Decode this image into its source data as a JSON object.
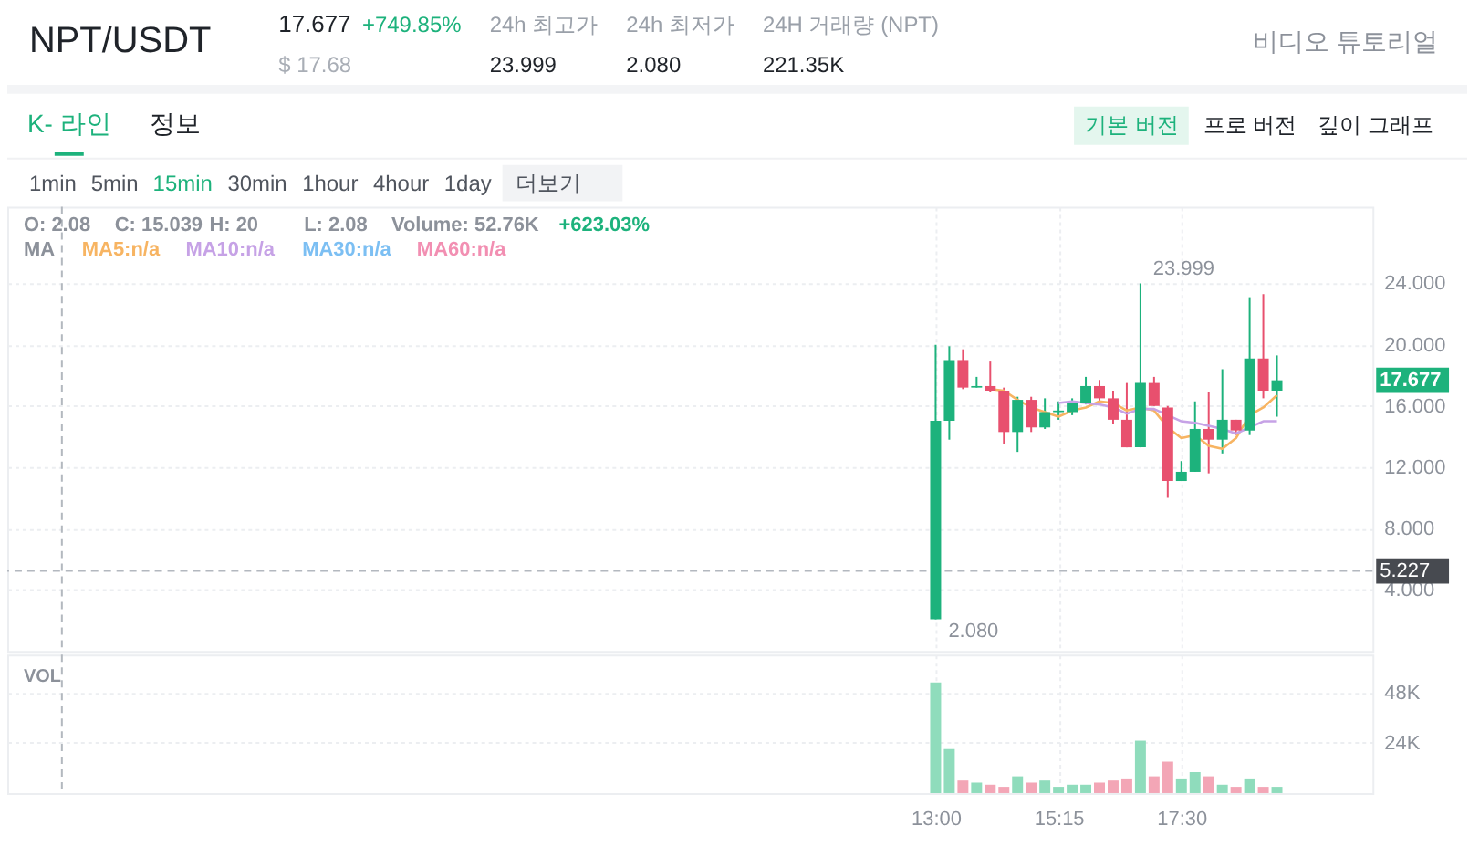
{
  "chart_data": [
    {
      "type": "other",
      "title": "NPT/USDT",
      "annotations": [
        "17.677",
        "+749.85%",
        "$ 17.68",
        "24h 최고가",
        "23.999",
        "24h 최저가",
        "2.080",
        "24H 거래량 (NPT)",
        "221.35K",
        "비디오 튜토리얼",
        "K- 라인",
        "정보",
        "기본 버전",
        "프로 버전",
        "깊이 그래프",
        "1min",
        "5min",
        "15min",
        "30min",
        "1hour",
        "4hour",
        "1day",
        "더보기"
      ]
    },
    {
      "type": "candlestick",
      "x": [
        13,
        13.25,
        13.5,
        13.75,
        14,
        14.25,
        14.5,
        14.75,
        15,
        15.25,
        15.5,
        15.75,
        16,
        16.25,
        16.5,
        16.75,
        17,
        17.25,
        17.5,
        17.75,
        18,
        18.25,
        18.5,
        18.75,
        19,
        19.25
      ],
      "ohlc": [
        [
          2.08,
          20,
          2.08,
          15.039
        ],
        [
          15.04,
          19.9,
          13.8,
          19.0
        ],
        [
          19.0,
          19.7,
          17.1,
          17.2
        ],
        [
          17.2,
          17.9,
          17.2,
          17.3
        ],
        [
          17.3,
          18.9,
          16.9,
          17.0
        ],
        [
          17.0,
          17.2,
          13.5,
          14.3
        ],
        [
          14.3,
          16.6,
          13.0,
          16.4
        ],
        [
          16.4,
          16.6,
          14.3,
          14.6
        ],
        [
          14.6,
          16.5,
          14.5,
          15.6
        ],
        [
          15.6,
          16.3,
          15.1,
          15.7
        ],
        [
          15.6,
          16.5,
          15.4,
          16.2
        ],
        [
          16.2,
          17.9,
          16.1,
          17.3
        ],
        [
          17.3,
          17.7,
          16.2,
          16.5
        ],
        [
          16.5,
          17.0,
          14.8,
          15.1
        ],
        [
          15.1,
          17.5,
          13.3,
          13.3
        ],
        [
          13.3,
          23.999,
          13.3,
          17.5
        ],
        [
          17.5,
          17.9,
          16.0,
          16.0
        ],
        [
          15.9,
          16.0,
          10.0,
          11.1
        ],
        [
          11.1,
          12.4,
          11.1,
          11.7
        ],
        [
          11.7,
          16.3,
          11.7,
          14.5
        ],
        [
          14.5,
          16.9,
          11.6,
          13.8
        ],
        [
          13.8,
          18.4,
          12.9,
          15.1
        ],
        [
          15.1,
          15.1,
          14.1,
          14.4
        ],
        [
          14.4,
          23.1,
          14.1,
          19.1
        ],
        [
          19.1,
          23.3,
          16.5,
          17.0
        ],
        [
          17.0,
          19.3,
          15.3,
          17.677
        ]
      ],
      "colors": [
        "#1db27c",
        "#1db27c",
        "#e8506e",
        "#1db27c",
        "#e8506e",
        "#e8506e",
        "#1db27c",
        "#e8506e",
        "#1db27c",
        "#1db27c",
        "#1db27c",
        "#1db27c",
        "#e8506e",
        "#e8506e",
        "#e8506e",
        "#1db27c",
        "#e8506e",
        "#e8506e",
        "#1db27c",
        "#1db27c",
        "#e8506e",
        "#1db27c",
        "#e8506e",
        "#1db27c",
        "#e8506e",
        "#1db27c"
      ],
      "series": [
        {
          "type": "line",
          "name": "MA5:n/a",
          "color": "#f7b462",
          "values": [
            null,
            null,
            null,
            null,
            17.1,
            17.0,
            16.4,
            15.9,
            15.6,
            15.3,
            15.7,
            15.9,
            16.3,
            16.2,
            15.7,
            15.9,
            15.7,
            14.6,
            13.9,
            14.1,
            13.4,
            13.2,
            13.9,
            15.4,
            15.9,
            16.7
          ]
        },
        {
          "type": "line",
          "name": "MA10:n/a",
          "color": "#c6a2e6",
          "values": [
            null,
            null,
            null,
            null,
            null,
            null,
            null,
            null,
            null,
            16.2,
            16.3,
            16.2,
            16.1,
            15.9,
            15.5,
            15.8,
            15.8,
            15.4,
            15.0,
            14.9,
            14.7,
            14.5,
            14.2,
            14.6,
            15.0,
            15.0
          ]
        },
        {
          "type": "line",
          "name": "MA30:n/a",
          "color": "#7cbff3",
          "values": [
            null,
            null,
            null,
            null,
            null,
            null,
            null,
            null,
            null,
            null,
            null,
            null,
            null,
            null,
            null,
            null,
            null,
            null,
            null,
            null,
            null,
            null,
            null,
            null,
            null,
            null
          ]
        },
        {
          "type": "line",
          "name": "MA60:n/a",
          "color": "#f28fb2",
          "values": [
            null,
            null,
            null,
            null,
            null,
            null,
            null,
            null,
            null,
            null,
            null,
            null,
            null,
            null,
            null,
            null,
            null,
            null,
            null,
            null,
            null,
            null,
            null,
            null,
            null,
            null
          ]
        }
      ],
      "legend": "top left",
      "legend_title": "MA",
      "xlim": [
        -4,
        21
      ],
      "xticks": [
        {
          "value": 13,
          "label": null
        },
        {
          "value": 15.25,
          "label": null
        },
        {
          "value": 17.5,
          "label": null
        }
      ],
      "ylim": [
        0,
        29
      ],
      "yticks": [
        {
          "value": 4,
          "label": "4.000"
        },
        {
          "value": 8,
          "label": "8.000"
        },
        {
          "value": 12,
          "label": "12.000"
        },
        {
          "value": 16,
          "label": "16.000"
        },
        {
          "value": 20,
          "label": "20.000"
        },
        {
          "value": 24,
          "label": "24.000"
        }
      ],
      "tick_labels": "y",
      "grid": true,
      "ref_lines": [
        {
          "axis": "y",
          "value": 5.227,
          "label": "5.227",
          "line_style": "dashed"
        },
        {
          "axis": "x",
          "value": -3,
          "line_style": "dashed"
        }
      ],
      "annotations": [
        "O: 2.08",
        "C: 15.039",
        "H: 20",
        "L: 2.08",
        "Volume: 52.76K",
        "+623.03%",
        "17.677",
        {
          "text": "23.999",
          "x": 16.75,
          "y": 23.999
        },
        {
          "text": "2.080",
          "x": 13,
          "y": 2.08
        }
      ]
    },
    {
      "type": "bar",
      "title": "VOL",
      "x": [
        13,
        13.25,
        13.5,
        13.75,
        14,
        14.25,
        14.5,
        14.75,
        15,
        15.25,
        15.5,
        15.75,
        16,
        16.25,
        16.5,
        16.75,
        17,
        17.25,
        17.5,
        17.75,
        18,
        18.25,
        18.5,
        18.75,
        19,
        19.25
      ],
      "values": [
        52760,
        21000,
        6000,
        5000,
        4000,
        3000,
        8000,
        5000,
        6000,
        3000,
        4000,
        4000,
        5000,
        6000,
        7000,
        25000,
        8000,
        15000,
        7000,
        10000,
        8000,
        4000,
        3000,
        7000,
        3000,
        3000
      ],
      "colors": [
        "#8fdcbc",
        "#8fdcbc",
        "#f3a6b6",
        "#8fdcbc",
        "#f3a6b6",
        "#f3a6b6",
        "#8fdcbc",
        "#f3a6b6",
        "#8fdcbc",
        "#8fdcbc",
        "#8fdcbc",
        "#8fdcbc",
        "#f3a6b6",
        "#f3a6b6",
        "#f3a6b6",
        "#8fdcbc",
        "#f3a6b6",
        "#f3a6b6",
        "#8fdcbc",
        "#8fdcbc",
        "#f3a6b6",
        "#8fdcbc",
        "#f3a6b6",
        "#8fdcbc",
        "#f3a6b6",
        "#8fdcbc"
      ],
      "xlim": [
        -4,
        21
      ],
      "xticks": [
        {
          "value": 13,
          "label": "13:00"
        },
        {
          "value": 15.25,
          "label": "15:15"
        },
        {
          "value": 17.5,
          "label": "17:30"
        }
      ],
      "ylim": [
        0,
        66000
      ],
      "yticks": [
        {
          "value": 24000,
          "label": "24K"
        },
        {
          "value": 48000,
          "label": "48K"
        }
      ],
      "grid": true,
      "ref_lines": [
        {
          "axis": "x",
          "value": -3,
          "line_style": "dashed"
        }
      ]
    }
  ]
}
